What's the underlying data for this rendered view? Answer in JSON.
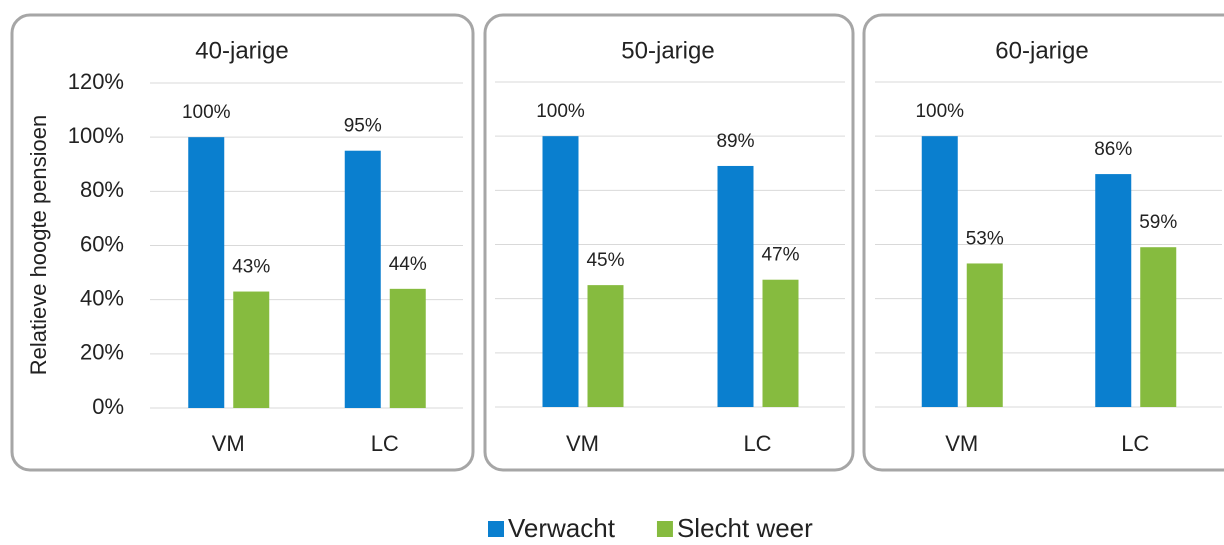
{
  "chart_data": [
    {
      "type": "bar",
      "title": "40-jarige",
      "y_label": "Relatieve hoogte pensioen",
      "categories": [
        "VM",
        "LC"
      ],
      "series": [
        {
          "name": "Verwacht",
          "color": "#0a7fcf",
          "values": [
            100,
            95
          ],
          "value_labels": [
            "100%",
            "95%"
          ]
        },
        {
          "name": "Slecht weer",
          "color": "#86bb3f",
          "values": [
            43,
            44
          ],
          "value_labels": [
            "43%",
            "44%"
          ]
        }
      ],
      "ylim": [
        0,
        120
      ],
      "yticks": [
        {
          "value": 0,
          "label": "0%"
        },
        {
          "value": 20,
          "label": "20%"
        },
        {
          "value": 40,
          "label": "40%"
        },
        {
          "value": 60,
          "label": "60%"
        },
        {
          "value": 80,
          "label": "80%"
        },
        {
          "value": 100,
          "label": "100%"
        },
        {
          "value": 120,
          "label": "120%"
        }
      ],
      "grid": true
    },
    {
      "type": "bar",
      "title": "50-jarige",
      "categories": [
        "VM",
        "LC"
      ],
      "series": [
        {
          "color": "#0a7fcf",
          "values": [
            100,
            89
          ],
          "value_labels": [
            "100%",
            "89%"
          ]
        },
        {
          "color": "#86bb3f",
          "values": [
            45,
            47
          ],
          "value_labels": [
            "45%",
            "47%"
          ]
        }
      ],
      "ylim": [
        0,
        120
      ],
      "yticks": [
        0,
        20,
        40,
        60,
        80,
        100,
        120
      ],
      "grid": true
    },
    {
      "type": "bar",
      "title": "60-jarige",
      "categories": [
        "VM",
        "LC"
      ],
      "series": [
        {
          "color": "#0a7fcf",
          "values": [
            100,
            86
          ],
          "value_labels": [
            "100%",
            "86%"
          ]
        },
        {
          "color": "#86bb3f",
          "values": [
            53,
            59
          ],
          "value_labels": [
            "53%",
            "59%"
          ]
        }
      ],
      "ylim": [
        0,
        120
      ],
      "yticks": [
        0,
        20,
        40,
        60,
        80,
        100,
        120
      ],
      "grid": true
    }
  ]
}
